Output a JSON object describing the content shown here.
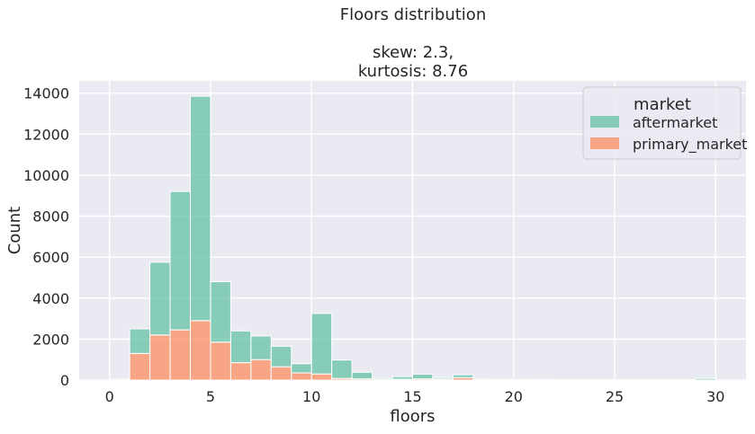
{
  "chart_data": {
    "type": "bar",
    "stacked": true,
    "title_lines": [
      "Floors distribution",
      "",
      "skew: 2.3,",
      "kurtosis: 8.76"
    ],
    "xlabel": "floors",
    "ylabel": "Count",
    "xlim": [
      -1.5,
      31.5
    ],
    "ylim": [
      0,
      14600
    ],
    "xticks": [
      0,
      5,
      10,
      15,
      20,
      25,
      30
    ],
    "yticks": [
      0,
      2000,
      4000,
      6000,
      8000,
      10000,
      12000,
      14000
    ],
    "grid": true,
    "legend": {
      "title": "market",
      "placement": "top-right",
      "entries": [
        {
          "label": "aftermarket",
          "color": "#66c2a5"
        },
        {
          "label": "primary_market",
          "color": "#fc8d62"
        }
      ]
    },
    "bins": [
      [
        0,
        1
      ],
      [
        1,
        2
      ],
      [
        2,
        3
      ],
      [
        3,
        4
      ],
      [
        4,
        5
      ],
      [
        5,
        6
      ],
      [
        6,
        7
      ],
      [
        7,
        8
      ],
      [
        8,
        9
      ],
      [
        9,
        10
      ],
      [
        10,
        11
      ],
      [
        11,
        12
      ],
      [
        12,
        13
      ],
      [
        13,
        14
      ],
      [
        14,
        15
      ],
      [
        15,
        16
      ],
      [
        16,
        17
      ],
      [
        17,
        18
      ],
      [
        18,
        19
      ],
      [
        19,
        20
      ],
      [
        20,
        21
      ],
      [
        21,
        22
      ],
      [
        22,
        23
      ],
      [
        23,
        24
      ],
      [
        24,
        25
      ],
      [
        25,
        26
      ],
      [
        26,
        27
      ],
      [
        27,
        28
      ],
      [
        28,
        29
      ],
      [
        29,
        30
      ]
    ],
    "series": [
      {
        "name": "primary_market",
        "color": "#fc8d62",
        "values": [
          10,
          1300,
          2200,
          2450,
          2900,
          1850,
          850,
          1000,
          650,
          350,
          300,
          80,
          60,
          20,
          40,
          60,
          50,
          120,
          10,
          5,
          5,
          0,
          0,
          0,
          0,
          0,
          0,
          0,
          0,
          0
        ]
      },
      {
        "name": "aftermarket",
        "color": "#66c2a5",
        "values": [
          30,
          1200,
          3550,
          6750,
          10950,
          2950,
          1550,
          1150,
          1000,
          450,
          2950,
          900,
          320,
          60,
          130,
          230,
          70,
          140,
          30,
          20,
          10,
          10,
          5,
          5,
          5,
          5,
          5,
          5,
          5,
          80
        ]
      }
    ]
  }
}
